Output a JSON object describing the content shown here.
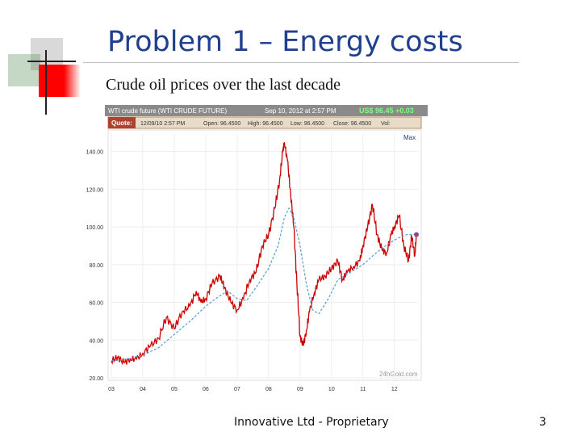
{
  "slide": {
    "title": "Problem 1 – Energy costs",
    "subtitle": "Crude oil prices over the last decade",
    "footer": "Innovative  Ltd - Proprietary",
    "page_number": "3"
  },
  "colors": {
    "title": "#1f3f8f",
    "accent_red": "#ff0000",
    "accent_green": "#2d7a2d",
    "price_line": "#cc0000",
    "average_line": "#5b9bd5",
    "quote_bar": "#c8b59a",
    "header_bar": "#8a8a8a"
  },
  "chart_data": {
    "type": "line",
    "header": {
      "instrument": "WTI crude future (WTI CRUDE FUTURE)",
      "timestamp": "Sep 10, 2012 at 2:57 PM",
      "price": "US$ 96.45 +0.03"
    },
    "quote": {
      "label": "Quote:",
      "date": "12/09/10 2:57 PM",
      "open": "Open: 96.4500",
      "high": "High: 96.4500",
      "low": "Low: 96.4500",
      "close": "Close: 96.4500",
      "vol": "Vol:"
    },
    "range_label": "Max",
    "watermark": "24hGold.com",
    "y_ticks": [
      "140.00",
      "120.00",
      "100.00",
      "80.00",
      "60.00",
      "40.00",
      "20.00"
    ],
    "y_tick_values": [
      140,
      120,
      100,
      80,
      60,
      40,
      20
    ],
    "x_ticks": [
      "03",
      "04",
      "05",
      "06",
      "07",
      "08",
      "09",
      "10",
      "11",
      "12"
    ],
    "x_tick_values": [
      2003,
      2004,
      2005,
      2006,
      2007,
      2008,
      2009,
      2010,
      2011,
      2012
    ],
    "ylim": [
      20,
      145
    ],
    "xlim": [
      2003,
      2012.75
    ],
    "series": [
      {
        "name": "",
        "style": "price",
        "x": [
          2003.0,
          2003.2,
          2003.4,
          2003.6,
          2003.8,
          2004.0,
          2004.25,
          2004.5,
          2004.75,
          2005.0,
          2005.25,
          2005.5,
          2005.7,
          2005.85,
          2006.0,
          2006.2,
          2006.45,
          2006.6,
          2006.8,
          2007.0,
          2007.2,
          2007.4,
          2007.6,
          2007.8,
          2008.0,
          2008.2,
          2008.35,
          2008.45,
          2008.5,
          2008.6,
          2008.7,
          2008.8,
          2008.9,
          2009.0,
          2009.1,
          2009.2,
          2009.3,
          2009.45,
          2009.6,
          2009.8,
          2010.0,
          2010.2,
          2010.35,
          2010.5,
          2010.7,
          2010.9,
          2011.0,
          2011.15,
          2011.3,
          2011.45,
          2011.6,
          2011.75,
          2011.9,
          2012.0,
          2012.15,
          2012.3,
          2012.45,
          2012.55,
          2012.65,
          2012.7
        ],
        "y": [
          29,
          31,
          28,
          30,
          30,
          33,
          37,
          41,
          52,
          46,
          55,
          58,
          66,
          60,
          62,
          70,
          74,
          68,
          60,
          56,
          62,
          72,
          76,
          90,
          96,
          110,
          125,
          140,
          145,
          135,
          118,
          100,
          70,
          42,
          37,
          45,
          55,
          65,
          72,
          74,
          78,
          82,
          72,
          76,
          79,
          82,
          90,
          100,
          112,
          96,
          88,
          86,
          96,
          100,
          106,
          90,
          82,
          95,
          85,
          96
        ]
      },
      {
        "name": "",
        "style": "average",
        "x": [
          2003.0,
          2003.5,
          2004.0,
          2004.5,
          2005.0,
          2005.5,
          2006.0,
          2006.4,
          2006.7,
          2007.0,
          2007.3,
          2007.6,
          2008.0,
          2008.3,
          2008.5,
          2008.65,
          2008.8,
          2009.0,
          2009.2,
          2009.4,
          2009.6,
          2009.9,
          2010.2,
          2010.6,
          2011.0,
          2011.4,
          2011.8,
          2012.1,
          2012.4,
          2012.7
        ],
        "y": [
          29,
          30,
          32,
          36,
          43,
          50,
          58,
          63,
          66,
          62,
          61,
          68,
          78,
          90,
          105,
          110,
          105,
          90,
          70,
          56,
          54,
          62,
          72,
          76,
          80,
          86,
          91,
          94,
          96,
          96
        ]
      }
    ],
    "last_point": {
      "x": 2012.7,
      "y": 96
    }
  }
}
